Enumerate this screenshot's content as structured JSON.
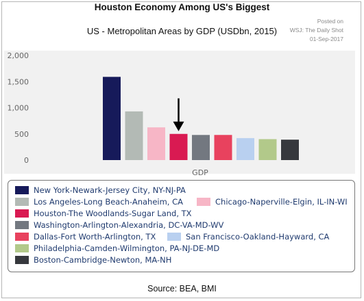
{
  "header": {
    "title": "Houston Economy Among US's Biggest",
    "subtitle": "US - Metropolitan Areas by GDP (USDbn, 2015)",
    "posted_lines": [
      "Posted on",
      "WSJ: The Daily Shot",
      "01-Sep-2017"
    ]
  },
  "footer": {
    "source": "Source: BEA, BMI"
  },
  "chart_data": {
    "type": "bar",
    "title": "US - Metropolitan Areas by GDP (USDbn, 2015)",
    "xlabel": "GDP",
    "ylabel": "",
    "ylim": [
      0,
      2000
    ],
    "yticks": [
      0,
      500,
      1000,
      1500,
      2000
    ],
    "ytick_labels": [
      "0",
      "500",
      "1,000",
      "1,500",
      "2,000"
    ],
    "grid": false,
    "legend_position": "bottom",
    "categories": [
      "GDP"
    ],
    "annotation": "arrow pointing to Houston-The Woodlands-Sugar Land, TX",
    "series": [
      {
        "name": "New York-Newark-Jersey City, NY-NJ-PA",
        "values": [
          1590
        ],
        "color": "#161a5a"
      },
      {
        "name": "Los Angeles-Long Beach-Anaheim, CA",
        "values": [
          930
        ],
        "color": "#b3bab5"
      },
      {
        "name": "Chicago-Naperville-Elgin, IL-IN-WI",
        "values": [
          625
        ],
        "color": "#f7b6c6"
      },
      {
        "name": "Houston-The Woodlands-Sugar Land, TX",
        "values": [
          500
        ],
        "color": "#d91a52"
      },
      {
        "name": "Washington-Arlington-Alexandria, DC-VA-MD-WV",
        "values": [
          480
        ],
        "color": "#737880"
      },
      {
        "name": "Dallas-Fort Worth-Arlington, TX",
        "values": [
          480
        ],
        "color": "#e8425e"
      },
      {
        "name": "San Francisco-Oakland-Hayward, CA",
        "values": [
          420
        ],
        "color": "#b9d0f0"
      },
      {
        "name": "Philadelphia-Camden-Wilmington, PA-NJ-DE-MD",
        "values": [
          400
        ],
        "color": "#b2c98a"
      },
      {
        "name": "Boston-Cambridge-Newton, MA-NH",
        "values": [
          390
        ],
        "color": "#36383d"
      }
    ]
  }
}
